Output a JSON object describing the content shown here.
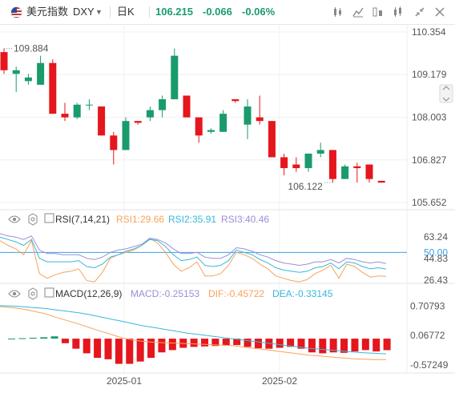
{
  "toolbar": {
    "symbol_name": "美元指数",
    "symbol_code": "DXY",
    "timeframe": "日K",
    "last_price": "106.215",
    "change": "-0.066",
    "change_pct": "-0.06%",
    "icons": [
      "candle-style-icon",
      "indicator-icon",
      "compare-icon",
      "settings-icon",
      "collapse-icon",
      "close-icon"
    ]
  },
  "rsi": {
    "title": "RSI(7,14,21)",
    "line1": "RSI1:29.66",
    "line2": "RSI2:35.91",
    "line3": "RSI3:40.46",
    "ticks": [
      "63.24",
      "50.00",
      "44.83",
      "26.43"
    ]
  },
  "macd": {
    "title": "MACD(12,26,9)",
    "macd": "MACD:-0.25153",
    "dif": "DIF:-0.45722",
    "dea": "DEA:-0.33145",
    "ticks": [
      "0.70793",
      "0.06772",
      "-0.57249"
    ]
  },
  "colors": {
    "up": "#1a9b6c",
    "down": "#e5161d",
    "rsi1": "#f6a35b",
    "rsi2": "#37b8d9",
    "rsi3": "#9b8ed8",
    "ref": "#3aa0e8"
  },
  "chart_data": [
    {
      "type": "candlestick",
      "title": "",
      "y_ticks": [
        "110.354",
        "109.179",
        "108.003",
        "106.827",
        "105.652"
      ],
      "ylim": [
        105.652,
        110.354
      ],
      "x_ticks": [
        "2025-01",
        "2025-02"
      ],
      "annotations": [
        "109.884",
        "106.122"
      ],
      "series": [
        {
          "ohlc": [
            [
              109.8,
              109.9,
              109.2,
              109.3
            ],
            [
              109.2,
              109.4,
              108.7,
              109.3
            ],
            [
              109.0,
              109.2,
              108.9,
              109.1
            ],
            [
              108.9,
              109.7,
              108.9,
              109.5
            ],
            [
              109.5,
              109.6,
              108.1,
              108.1
            ],
            [
              108.1,
              108.4,
              107.9,
              108.0
            ],
            [
              108.0,
              108.4,
              107.95,
              108.35
            ],
            [
              108.35,
              108.5,
              108.2,
              108.35
            ],
            [
              108.3,
              108.3,
              107.5,
              107.5
            ],
            [
              107.5,
              107.6,
              106.7,
              107.1
            ],
            [
              107.1,
              108.0,
              107.1,
              107.9
            ],
            [
              107.9,
              107.9,
              107.8,
              107.85
            ],
            [
              108.0,
              108.3,
              107.9,
              108.2
            ],
            [
              108.2,
              108.6,
              108.0,
              108.5
            ],
            [
              108.5,
              109.9,
              108.5,
              109.7
            ],
            [
              108.6,
              108.6,
              108.0,
              108.0
            ],
            [
              108.0,
              108.0,
              107.3,
              107.5
            ],
            [
              107.6,
              107.7,
              107.55,
              107.65
            ],
            [
              107.6,
              108.2,
              107.6,
              108.1
            ],
            [
              108.5,
              108.5,
              108.4,
              108.45
            ],
            [
              107.8,
              108.5,
              107.4,
              108.3
            ],
            [
              108.0,
              108.6,
              107.8,
              107.9
            ],
            [
              107.9,
              107.9,
              106.9,
              106.9
            ],
            [
              106.9,
              107.0,
              106.4,
              106.6
            ],
            [
              106.7,
              106.9,
              106.5,
              106.6
            ],
            [
              106.6,
              107.0,
              106.5,
              107.0
            ],
            [
              107.0,
              107.3,
              106.9,
              107.1
            ],
            [
              107.1,
              107.1,
              106.2,
              106.3
            ],
            [
              106.3,
              106.7,
              106.3,
              106.65
            ],
            [
              106.65,
              106.75,
              106.2,
              106.6
            ],
            [
              106.7,
              106.7,
              106.2,
              106.3
            ],
            [
              106.25,
              106.25,
              106.2,
              106.2
            ]
          ]
        }
      ]
    },
    {
      "type": "line",
      "title": "RSI(7,14,21)",
      "y_ticks": [
        "63.24",
        "50.00",
        "44.83",
        "26.43"
      ],
      "ylim": [
        26.43,
        72
      ],
      "reference_line": 50,
      "series": [
        {
          "name": "RSI1",
          "values": [
            60,
            56,
            53,
            48,
            60,
            32,
            28,
            31,
            33,
            34,
            36,
            26,
            25,
            33,
            45,
            48,
            50,
            52,
            56,
            62,
            58,
            50,
            40,
            34,
            37,
            42,
            30,
            30,
            32,
            39,
            50,
            48,
            45,
            40,
            36,
            30,
            28,
            26,
            25,
            27,
            32,
            35,
            39,
            28,
            40,
            38,
            33,
            29,
            30,
            29.66
          ]
        },
        {
          "name": "RSI2",
          "values": [
            63,
            61,
            59,
            56,
            61,
            45,
            42,
            42,
            42,
            42,
            43,
            38,
            37,
            40,
            46,
            48,
            51,
            53,
            56,
            61,
            60,
            55,
            48,
            43,
            44,
            46,
            39,
            38,
            39,
            43,
            52,
            50,
            48,
            44,
            41,
            37,
            35,
            34,
            33,
            34,
            37,
            38,
            41,
            36,
            42,
            41,
            38,
            36,
            37,
            35.91
          ]
        },
        {
          "name": "RSI3",
          "values": [
            66,
            64,
            63,
            61,
            64,
            52,
            49,
            49,
            48,
            48,
            48,
            45,
            44,
            46,
            50,
            52,
            53,
            55,
            57,
            62,
            61,
            58,
            53,
            49,
            49,
            50,
            46,
            45,
            45,
            48,
            54,
            53,
            51,
            48,
            46,
            43,
            41,
            40,
            39,
            40,
            42,
            42,
            44,
            41,
            45,
            44,
            42,
            41,
            42,
            40.46
          ]
        }
      ]
    },
    {
      "type": "bar",
      "title": "MACD(12,26,9)",
      "y_ticks": [
        "0.70793",
        "0.06772",
        "-0.57249"
      ],
      "ylim": [
        -0.68,
        0.84
      ],
      "series": [
        {
          "name": "MACD",
          "values": [
            0.0,
            0.01,
            0.02,
            0.03,
            0.05,
            -0.1,
            -0.22,
            -0.32,
            -0.42,
            -0.45,
            -0.55,
            -0.55,
            -0.5,
            -0.42,
            -0.3,
            -0.25,
            -0.2,
            -0.18,
            -0.17,
            -0.16,
            -0.15,
            -0.14,
            -0.18,
            -0.21,
            -0.22,
            -0.2,
            -0.18,
            -0.22,
            -0.3,
            -0.32,
            -0.3,
            -0.31,
            -0.28,
            -0.25,
            -0.28,
            -0.25153
          ]
        },
        {
          "name": "DIF",
          "values": [
            0.7,
            0.68,
            0.65,
            0.6,
            0.55,
            0.47,
            0.4,
            0.33,
            0.25,
            0.17,
            0.1,
            0.02,
            -0.03,
            -0.06,
            -0.08,
            -0.09,
            -0.1,
            -0.11,
            -0.12,
            -0.13,
            -0.14,
            -0.15,
            -0.18,
            -0.21,
            -0.24,
            -0.27,
            -0.3,
            -0.33,
            -0.36,
            -0.38,
            -0.4,
            -0.42,
            -0.44,
            -0.45,
            -0.46,
            -0.45722
          ]
        },
        {
          "name": "DEA",
          "values": [
            0.72,
            0.71,
            0.7,
            0.68,
            0.66,
            0.63,
            0.6,
            0.57,
            0.53,
            0.48,
            0.43,
            0.38,
            0.33,
            0.28,
            0.24,
            0.2,
            0.16,
            0.12,
            0.09,
            0.06,
            0.03,
            0.0,
            -0.03,
            -0.06,
            -0.09,
            -0.12,
            -0.15,
            -0.18,
            -0.21,
            -0.23,
            -0.25,
            -0.27,
            -0.29,
            -0.31,
            -0.32,
            -0.33145
          ]
        }
      ]
    }
  ]
}
